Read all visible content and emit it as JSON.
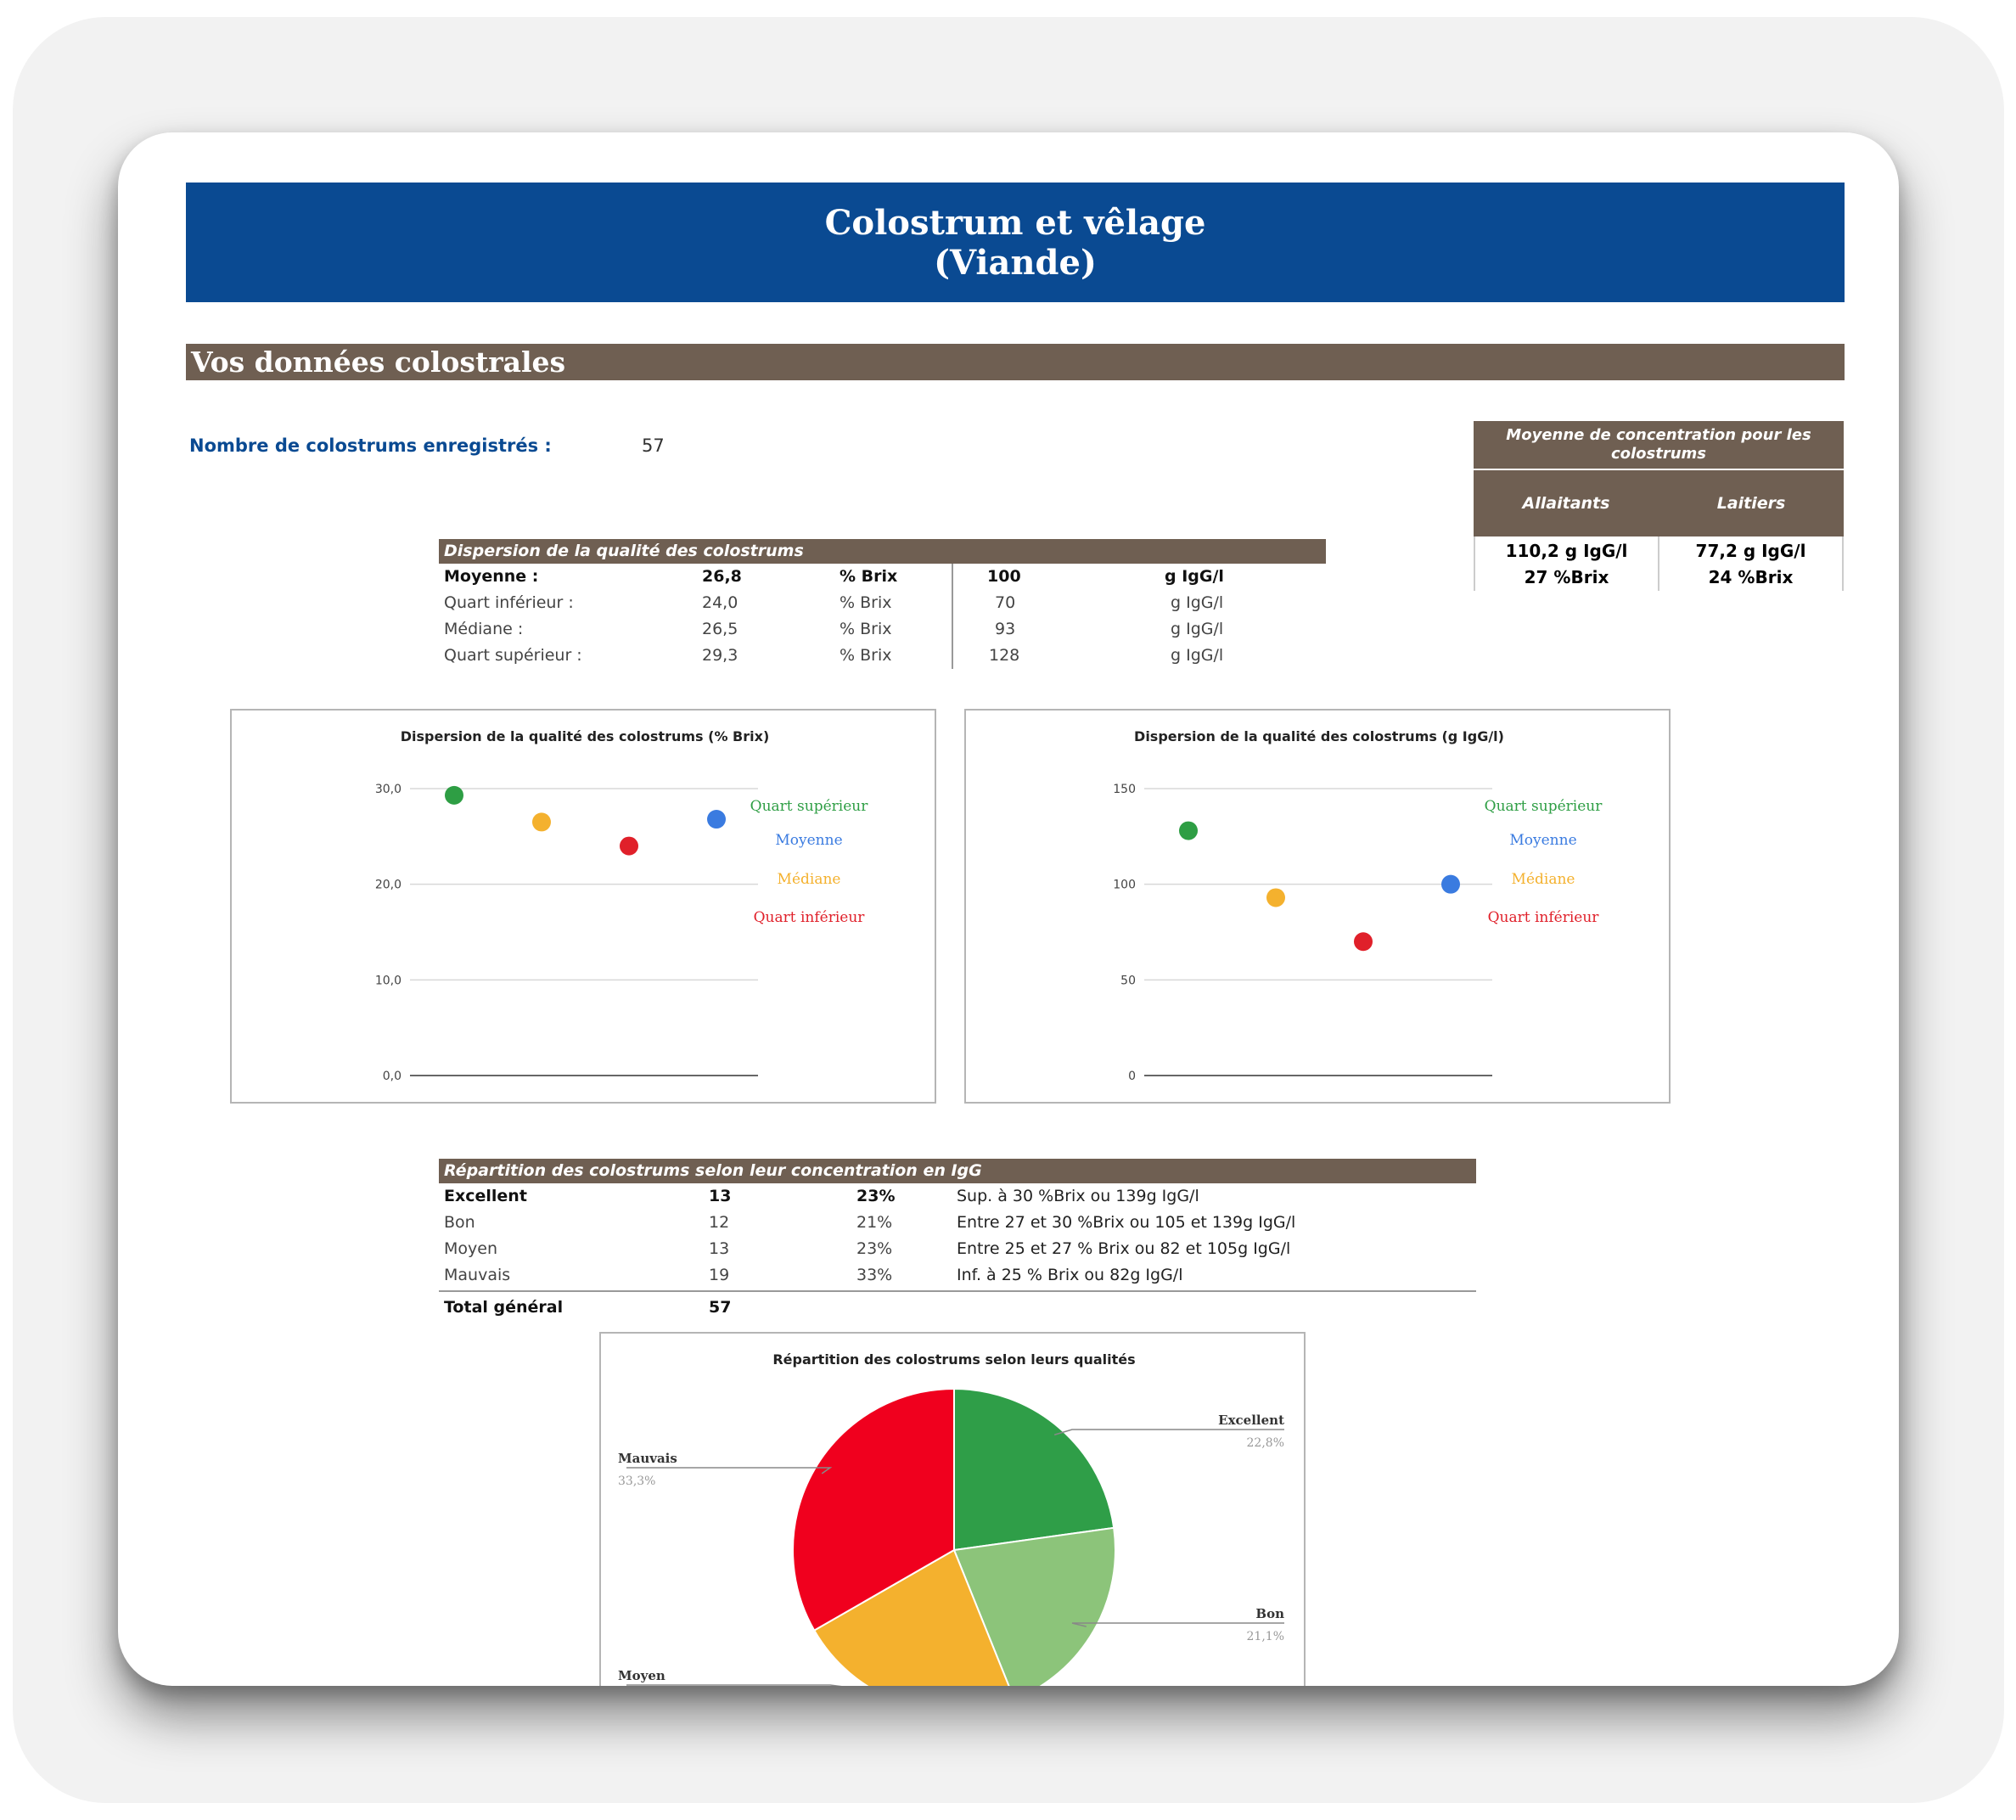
{
  "header": {
    "title_line1": "Colostrum et vêlage",
    "title_line2": "(Viande)"
  },
  "section": {
    "title": "Vos données colostrales"
  },
  "count": {
    "label": "Nombre de colostrums enregistrés :",
    "value": "57"
  },
  "concentration": {
    "title": "Moyenne de concentration pour les colostrums",
    "columns": [
      {
        "label": "Allaitants",
        "igg": "110,2 g IgG/l",
        "brix": "27 %Brix"
      },
      {
        "label": "Laitiers",
        "igg": "77,2 g IgG/l",
        "brix": "24 %Brix"
      }
    ]
  },
  "dispersion": {
    "title": "Dispersion de la qualité des colostrums",
    "rows": [
      {
        "label": "Moyenne :",
        "brix": "26,8",
        "brix_unit": "% Brix",
        "igg": "100",
        "igg_unit": "g IgG/l",
        "bold": true
      },
      {
        "label": "Quart inférieur :",
        "brix": "24,0",
        "brix_unit": "% Brix",
        "igg": "70",
        "igg_unit": "g IgG/l",
        "bold": false
      },
      {
        "label": "Médiane :",
        "brix": "26,5",
        "brix_unit": "% Brix",
        "igg": "93",
        "igg_unit": "g IgG/l",
        "bold": false
      },
      {
        "label": "Quart supérieur :",
        "brix": "29,3",
        "brix_unit": "% Brix",
        "igg": "128",
        "igg_unit": "g IgG/l",
        "bold": false
      }
    ]
  },
  "distribution": {
    "title": "Répartition des colostrums selon leur concentration en IgG",
    "rows": [
      {
        "label": "Excellent",
        "count": "13",
        "pct": "23%",
        "desc": "Sup. à 30 %Brix ou 139g IgG/l",
        "bold": true
      },
      {
        "label": "Bon",
        "count": "12",
        "pct": "21%",
        "desc": "Entre 27 et 30 %Brix ou 105 et 139g IgG/l",
        "bold": false
      },
      {
        "label": "Moyen",
        "count": "13",
        "pct": "23%",
        "desc": "Entre 25 et 27 % Brix ou 82 et 105g IgG/l",
        "bold": false
      },
      {
        "label": "Mauvais",
        "count": "19",
        "pct": "33%",
        "desc": "Inf. à 25 % Brix ou 82g IgG/l",
        "bold": false
      }
    ],
    "total_label": "Total général",
    "total_value": "57"
  },
  "chart_data": [
    {
      "type": "scatter",
      "title": "Dispersion de la qualité des colostrums (% Brix)",
      "yticks": [
        "30,0",
        "20,0",
        "10,0",
        "0,0"
      ],
      "ylim": [
        0,
        30
      ],
      "grid": true,
      "series": [
        {
          "name": "Quart supérieur",
          "x": 1,
          "y": 29.3,
          "color": "#2e9e44"
        },
        {
          "name": "Médiane",
          "x": 2,
          "y": 26.5,
          "color": "#f4b12e"
        },
        {
          "name": "Quart inférieur",
          "x": 3,
          "y": 24.0,
          "color": "#e0202a"
        },
        {
          "name": "Moyenne",
          "x": 4,
          "y": 26.8,
          "color": "#3a7be0"
        }
      ],
      "legend": [
        "Quart supérieur",
        "Moyenne",
        "Médiane",
        "Quart inférieur"
      ]
    },
    {
      "type": "scatter",
      "title": "Dispersion de la qualité des colostrums (g IgG/l)",
      "yticks": [
        "150",
        "100",
        "50",
        "0"
      ],
      "ylim": [
        0,
        150
      ],
      "grid": true,
      "series": [
        {
          "name": "Quart supérieur",
          "x": 1,
          "y": 128,
          "color": "#2e9e44"
        },
        {
          "name": "Médiane",
          "x": 2,
          "y": 93,
          "color": "#f4b12e"
        },
        {
          "name": "Quart inférieur",
          "x": 3,
          "y": 70,
          "color": "#e0202a"
        },
        {
          "name": "Moyenne",
          "x": 4,
          "y": 100,
          "color": "#3a7be0"
        }
      ],
      "legend": [
        "Quart supérieur",
        "Moyenne",
        "Médiane",
        "Quart inférieur"
      ]
    },
    {
      "type": "pie",
      "title": "Répartition des colostrums selon leurs qualités",
      "slices": [
        {
          "name": "Excellent",
          "value": 22.8,
          "label": "22,8%",
          "color": "#2f9e48"
        },
        {
          "name": "Bon",
          "value": 21.1,
          "label": "21,1%",
          "color": "#8cc47a"
        },
        {
          "name": "Moyen",
          "value": 22.8,
          "label": "",
          "color": "#f4b12e"
        },
        {
          "name": "Mauvais",
          "value": 33.3,
          "label": "33,3%",
          "color": "#f0001e"
        }
      ]
    }
  ]
}
